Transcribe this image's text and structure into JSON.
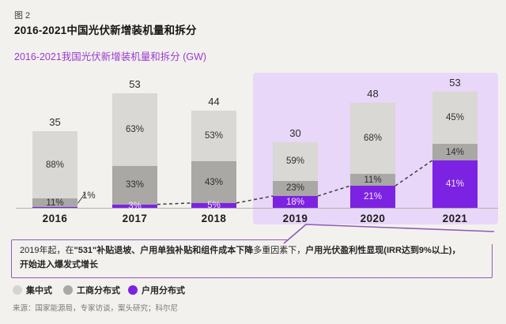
{
  "page": {
    "figure_label": "图 2",
    "title": "2016-2021中国光伏新增装机量和拆分",
    "source": "来源：国家能源局，专家访谈，案头研究；科尔尼"
  },
  "chart_data": {
    "type": "bar",
    "stacked": true,
    "title": "2016-2021我国光伏新增装机量和拆分 (GW)",
    "unit": "GW",
    "categories": [
      "2016",
      "2017",
      "2018",
      "2019",
      "2020",
      "2021"
    ],
    "totals": [
      35,
      53,
      44,
      30,
      48,
      53
    ],
    "series": [
      {
        "name": "户用分布式",
        "color": "#7c22e3",
        "values_pct": [
          1,
          3,
          5,
          18,
          21,
          41
        ]
      },
      {
        "name": "工商分布式",
        "color": "#a9a8a5",
        "values_pct": [
          11,
          33,
          43,
          23,
          11,
          14
        ]
      },
      {
        "name": "集中式",
        "color": "#d9d8d4",
        "values_pct": [
          88,
          63,
          53,
          59,
          68,
          45
        ]
      }
    ],
    "highlight_years": [
      "2019",
      "2020",
      "2021"
    ],
    "trend_line": "dashed line tracking 户用分布式 segment tops from 2017 to 2021",
    "legend_position": "bottom"
  },
  "legend": {
    "items": [
      {
        "label": "集中式",
        "color": "#d5d4d0"
      },
      {
        "label": "工商分布式",
        "color": "#a9a8a5"
      },
      {
        "label": "户用分布式",
        "color": "#7c22e3"
      }
    ]
  },
  "callout": {
    "segments": [
      {
        "text": "2019年起，在",
        "bold": false
      },
      {
        "text": "\"531\"补贴退坡、户用单独补贴和组件成本下降",
        "bold": true
      },
      {
        "text": "多重因素下，",
        "bold": false
      },
      {
        "text": "户用光伏盈利性显现(IRR达到9%以上)，",
        "bold": true
      },
      {
        "br": true
      },
      {
        "text": "开始进入爆发式增长",
        "bold": true
      }
    ]
  },
  "colors": {
    "background": "#f3f1ee",
    "highlight_bg": "#e8d7f8",
    "accent_purple": "#7c22e3",
    "subtitle_purple": "#9a3ad2",
    "callout_border": "#8e5bb8"
  }
}
